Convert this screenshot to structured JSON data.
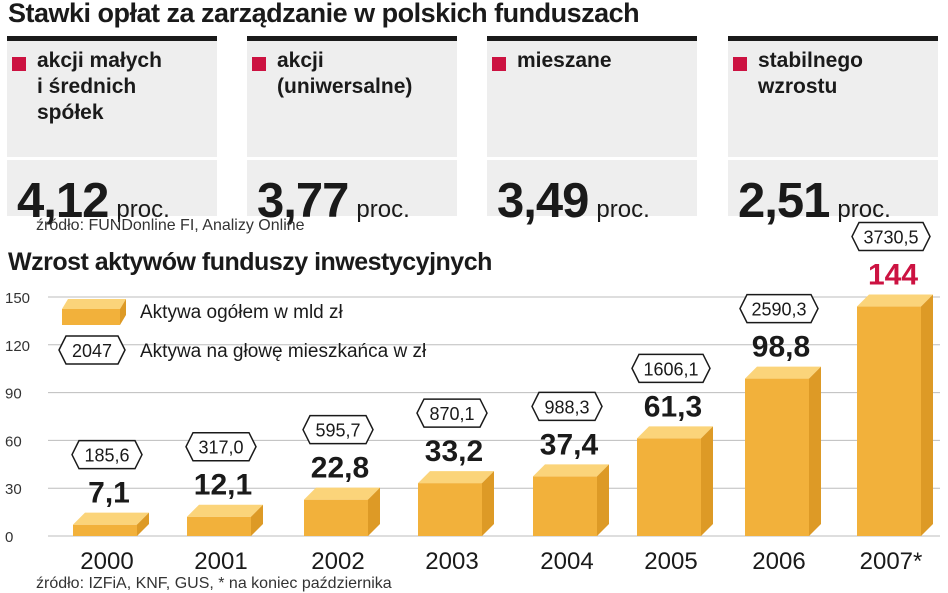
{
  "header": {
    "title": "Stawki opłat za zarządzanie w polskich funduszach",
    "source": "źródło: FUNDonline FI, Analizy Online"
  },
  "fees": [
    {
      "category": "akcji małych\ni średnich\nspółek",
      "value": "4,12",
      "unit": "proc."
    },
    {
      "category": "akcji\n(uniwersalne)",
      "value": "3,77",
      "unit": "proc."
    },
    {
      "category": "mieszane",
      "value": "3,49",
      "unit": "proc."
    },
    {
      "category": "stabilnego\nwzrostu",
      "value": "2,51",
      "unit": "proc."
    }
  ],
  "chart": {
    "title": "Wzrost aktywów funduszy inwestycyjnych",
    "source": "źródło: IZFiA, KNF, GUS, * na koniec października",
    "legend": {
      "box_label": "Aktywa ogółem w mld zł",
      "hex_sample": "2047",
      "hex_label": "Aktywa na głowę mieszkańca w zł"
    }
  },
  "colors": {
    "accent": "#cc1241",
    "bar_front": "#f2b13b",
    "bar_top": "#fbd47a",
    "bar_side": "#dd9a26",
    "card_bg": "#eeeeee"
  },
  "chart_data": {
    "type": "bar",
    "categories": [
      "2000",
      "2001",
      "2002",
      "2003",
      "2004",
      "2005",
      "2006",
      "2007*"
    ],
    "series": [
      {
        "name": "Aktywa ogółem w mld zł",
        "values": [
          7.1,
          12.1,
          22.8,
          33.2,
          37.4,
          61.3,
          98.8,
          144
        ]
      },
      {
        "name": "Aktywa na głowę mieszkańca w zł",
        "values": [
          185.6,
          317.0,
          595.7,
          870.1,
          988.3,
          1606.1,
          2590.3,
          3730.5
        ]
      }
    ],
    "value_labels": [
      "7,1",
      "12,1",
      "22,8",
      "33,2",
      "37,4",
      "61,3",
      "98,8",
      "144"
    ],
    "per_capita_labels": [
      "185,6",
      "317,0",
      "595,7",
      "870,1",
      "988,3",
      "1606,1",
      "2590,3",
      "3730,5"
    ],
    "yticks": [
      0,
      30,
      60,
      90,
      120,
      150
    ],
    "ylim": [
      0,
      150
    ],
    "highlight_color": "#cc1241",
    "grid": true
  }
}
